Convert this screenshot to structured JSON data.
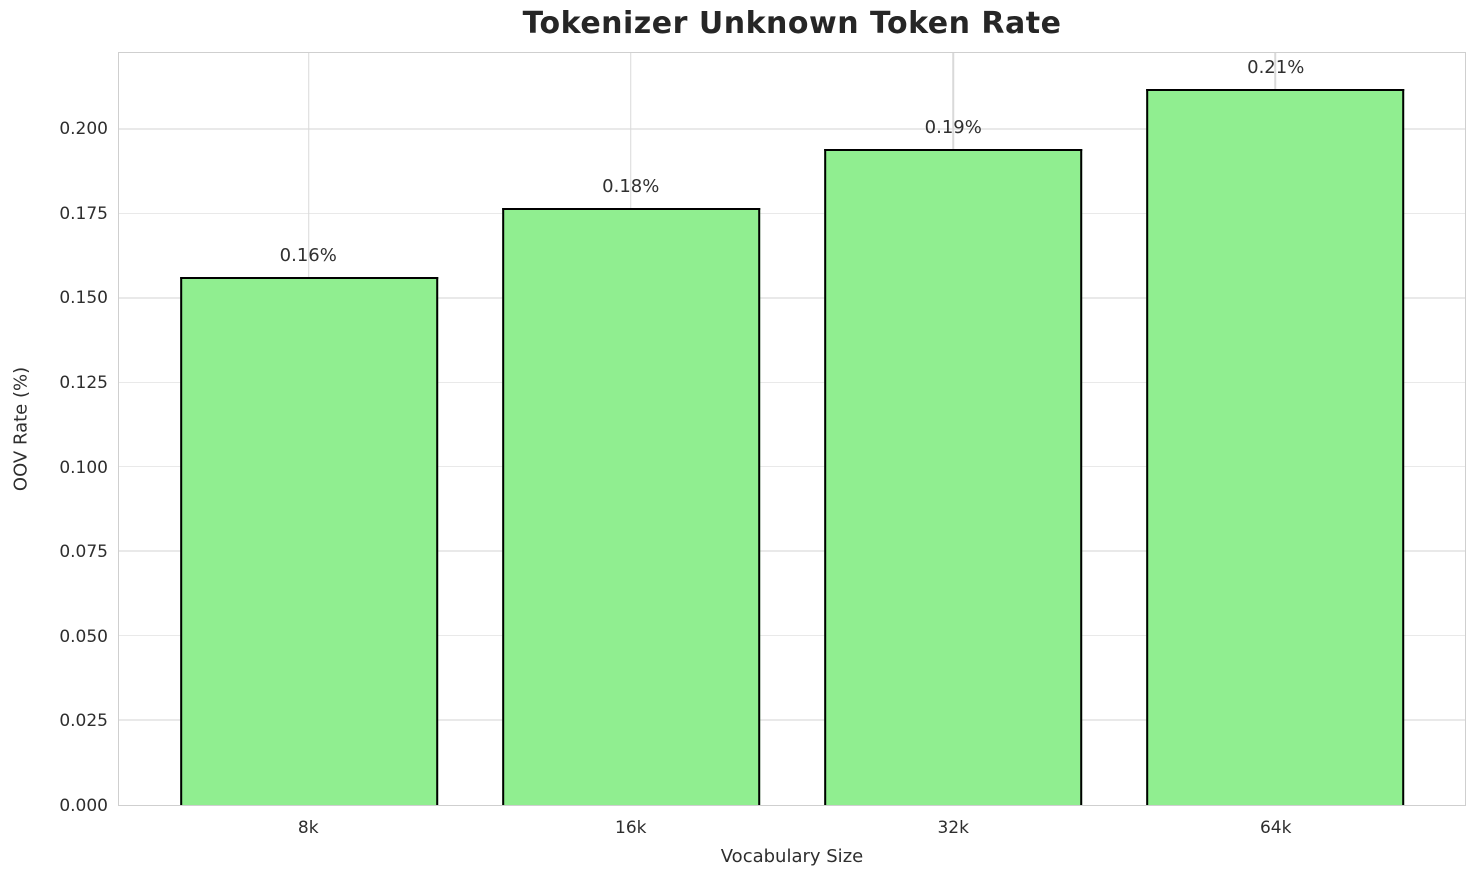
{
  "chart_data": {
    "type": "bar",
    "title": "Tokenizer Unknown Token Rate",
    "xlabel": "Vocabulary Size",
    "ylabel": "OOV Rate (%)",
    "categories": [
      "8k",
      "16k",
      "32k",
      "64k"
    ],
    "values": [
      0.1565,
      0.177,
      0.1944,
      0.2122
    ],
    "bar_labels": [
      "0.16%",
      "0.18%",
      "0.19%",
      "0.21%"
    ],
    "y_ticks": [
      {
        "label": "0.000",
        "value": 0.0
      },
      {
        "label": "0.025",
        "value": 0.025
      },
      {
        "label": "0.050",
        "value": 0.05
      },
      {
        "label": "0.075",
        "value": 0.075
      },
      {
        "label": "0.100",
        "value": 0.1
      },
      {
        "label": "0.125",
        "value": 0.125
      },
      {
        "label": "0.150",
        "value": 0.15
      },
      {
        "label": "0.175",
        "value": 0.175
      },
      {
        "label": "0.200",
        "value": 0.2
      }
    ],
    "ylim": [
      0,
      0.2228
    ],
    "xlim": [
      -0.59,
      3.59
    ],
    "bar_width_units": 0.8,
    "grid": true,
    "legend": null,
    "colors": {
      "bar_fill": "#90EE90",
      "bar_edge": "#000000",
      "h_grid": "#e9e9e9",
      "v_grid": "#d9d9d9",
      "spine": "#cfcfcf",
      "title_text": "#262626",
      "axis_text": "#2e2e2e"
    }
  }
}
